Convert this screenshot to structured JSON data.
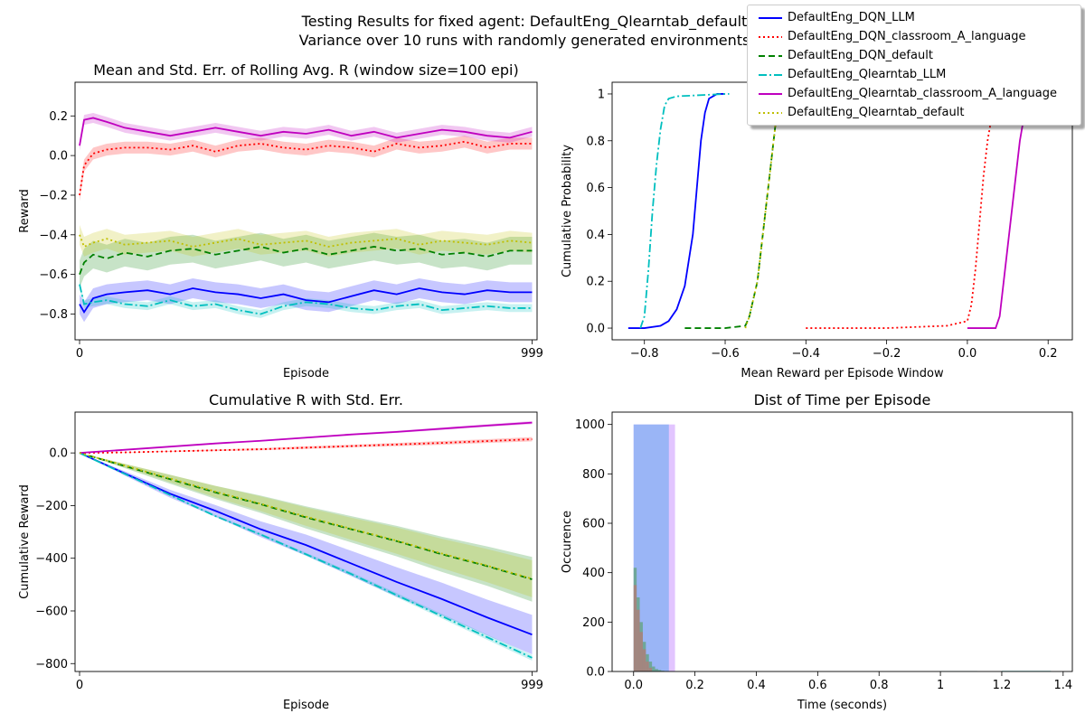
{
  "figure": {
    "title_line1": "Testing Results for fixed agent: DefaultEng_Qlearntab_default",
    "title_line2": "Variance over 10 runs with randomly generated environments"
  },
  "legend": [
    {
      "name": "DefaultEng_DQN_LLM",
      "color": "#0000ff",
      "style": "solid"
    },
    {
      "name": "DefaultEng_DQN_classroom_A_language",
      "color": "#ff0000",
      "style": "dotted"
    },
    {
      "name": "DefaultEng_DQN_default",
      "color": "#008000",
      "style": "dashed"
    },
    {
      "name": "DefaultEng_Qlearntab_LLM",
      "color": "#00bfbf",
      "style": "dashdot"
    },
    {
      "name": "DefaultEng_Qlearntab_classroom_A_language",
      "color": "#bf00bf",
      "style": "solid"
    },
    {
      "name": "DefaultEng_Qlearntab_default",
      "color": "#bfbf00",
      "style": "dotted"
    }
  ],
  "chart_data": [
    {
      "type": "line",
      "title": "Mean and Std. Err. of Rolling Avg. R (window size=100 epi)",
      "xlabel": "Episode",
      "ylabel": "Reward",
      "xlim": [
        -10,
        1010
      ],
      "ylim": [
        -0.93,
        0.37
      ],
      "xticks": [
        0,
        999
      ],
      "yticks": [
        -0.8,
        -0.6,
        -0.4,
        -0.2,
        0.0,
        0.2
      ],
      "x": [
        0,
        10,
        30,
        60,
        100,
        150,
        200,
        250,
        300,
        350,
        400,
        450,
        500,
        550,
        600,
        650,
        700,
        750,
        800,
        850,
        900,
        950,
        999
      ],
      "series": [
        {
          "name": "DefaultEng_DQN_LLM",
          "values": [
            -0.75,
            -0.79,
            -0.72,
            -0.7,
            -0.69,
            -0.68,
            -0.7,
            -0.67,
            -0.69,
            -0.7,
            -0.72,
            -0.7,
            -0.73,
            -0.74,
            -0.71,
            -0.68,
            -0.7,
            -0.67,
            -0.69,
            -0.7,
            -0.68,
            -0.69,
            -0.69
          ],
          "stderr": 0.05
        },
        {
          "name": "DefaultEng_DQN_classroom_A_language",
          "values": [
            -0.2,
            -0.05,
            0.01,
            0.03,
            0.04,
            0.04,
            0.03,
            0.05,
            0.02,
            0.05,
            0.06,
            0.04,
            0.03,
            0.05,
            0.04,
            0.02,
            0.06,
            0.04,
            0.05,
            0.07,
            0.04,
            0.06,
            0.06
          ],
          "stderr": 0.03
        },
        {
          "name": "DefaultEng_DQN_default",
          "values": [
            -0.6,
            -0.54,
            -0.5,
            -0.52,
            -0.49,
            -0.51,
            -0.48,
            -0.47,
            -0.5,
            -0.48,
            -0.46,
            -0.49,
            -0.47,
            -0.5,
            -0.48,
            -0.46,
            -0.48,
            -0.47,
            -0.5,
            -0.49,
            -0.51,
            -0.48,
            -0.48
          ],
          "stderr": 0.07
        },
        {
          "name": "DefaultEng_Qlearntab_LLM",
          "values": [
            -0.65,
            -0.75,
            -0.74,
            -0.73,
            -0.75,
            -0.76,
            -0.73,
            -0.76,
            -0.75,
            -0.78,
            -0.8,
            -0.76,
            -0.74,
            -0.75,
            -0.77,
            -0.78,
            -0.76,
            -0.75,
            -0.78,
            -0.77,
            -0.76,
            -0.77,
            -0.77
          ],
          "stderr": 0.02
        },
        {
          "name": "DefaultEng_Qlearntab_classroom_A_language",
          "values": [
            0.05,
            0.18,
            0.19,
            0.17,
            0.14,
            0.12,
            0.1,
            0.12,
            0.14,
            0.12,
            0.1,
            0.12,
            0.11,
            0.13,
            0.1,
            0.12,
            0.09,
            0.11,
            0.13,
            0.12,
            0.1,
            0.09,
            0.12
          ],
          "stderr": 0.025
        },
        {
          "name": "DefaultEng_Qlearntab_default",
          "values": [
            -0.4,
            -0.46,
            -0.44,
            -0.42,
            -0.45,
            -0.44,
            -0.43,
            -0.46,
            -0.44,
            -0.42,
            -0.45,
            -0.44,
            -0.43,
            -0.46,
            -0.44,
            -0.43,
            -0.42,
            -0.45,
            -0.43,
            -0.44,
            -0.45,
            -0.43,
            -0.44
          ],
          "stderr": 0.05
        }
      ]
    },
    {
      "type": "line",
      "subtype": "ecdf",
      "title": "",
      "xlabel": "Mean Reward per Episode Window",
      "ylabel": "Cumulative Probability",
      "xlim": [
        -0.88,
        0.26
      ],
      "ylim": [
        -0.05,
        1.05
      ],
      "xticks": [
        -0.8,
        -0.6,
        -0.4,
        -0.2,
        0.0,
        0.2
      ],
      "yticks": [
        0.0,
        0.2,
        0.4,
        0.6,
        0.8,
        1.0
      ],
      "series": [
        {
          "name": "DefaultEng_DQN_LLM",
          "x": [
            -0.84,
            -0.8,
            -0.76,
            -0.74,
            -0.72,
            -0.7,
            -0.68,
            -0.67,
            -0.66,
            -0.65,
            -0.64,
            -0.62,
            -0.6
          ],
          "y": [
            0.0,
            0.0,
            0.01,
            0.03,
            0.08,
            0.18,
            0.4,
            0.6,
            0.8,
            0.92,
            0.98,
            1.0,
            1.0
          ]
        },
        {
          "name": "DefaultEng_DQN_classroom_A_language",
          "x": [
            -0.4,
            -0.2,
            -0.05,
            0.0,
            0.01,
            0.02,
            0.03,
            0.04,
            0.05,
            0.06,
            0.07
          ],
          "y": [
            0.0,
            0.0,
            0.01,
            0.03,
            0.1,
            0.25,
            0.45,
            0.65,
            0.8,
            0.9,
            0.97
          ]
        },
        {
          "name": "DefaultEng_DQN_default",
          "x": [
            -0.7,
            -0.6,
            -0.55,
            -0.54,
            -0.52,
            -0.51,
            -0.5,
            -0.49,
            -0.48,
            -0.47,
            -0.46
          ],
          "y": [
            0.0,
            0.0,
            0.01,
            0.05,
            0.2,
            0.35,
            0.5,
            0.65,
            0.8,
            0.95,
            1.0
          ]
        },
        {
          "name": "DefaultEng_Qlearntab_LLM",
          "x": [
            -0.81,
            -0.8,
            -0.79,
            -0.78,
            -0.77,
            -0.76,
            -0.75,
            -0.74,
            -0.72,
            -0.6,
            -0.59
          ],
          "y": [
            0.0,
            0.05,
            0.25,
            0.5,
            0.7,
            0.85,
            0.95,
            0.98,
            0.99,
            1.0,
            1.0
          ]
        },
        {
          "name": "DefaultEng_Qlearntab_classroom_A_language",
          "x": [
            0.0,
            0.07,
            0.08,
            0.09,
            0.1,
            0.11,
            0.12,
            0.13,
            0.14
          ],
          "y": [
            0.0,
            0.0,
            0.05,
            0.2,
            0.35,
            0.5,
            0.65,
            0.8,
            0.9
          ]
        },
        {
          "name": "DefaultEng_Qlearntab_default",
          "x": [
            -0.55,
            -0.54,
            -0.52,
            -0.51,
            -0.5,
            -0.49,
            -0.48,
            -0.47,
            -0.46
          ],
          "y": [
            0.0,
            0.05,
            0.2,
            0.35,
            0.5,
            0.65,
            0.8,
            0.95,
            1.0
          ]
        }
      ]
    },
    {
      "type": "line",
      "title": "Cumulative R with Std. Err.",
      "xlabel": "Episode",
      "ylabel": "Cumulative Reward",
      "xlim": [
        -10,
        1010
      ],
      "ylim": [
        -830,
        155
      ],
      "xticks": [
        0,
        999
      ],
      "yticks": [
        -800,
        -600,
        -400,
        -200,
        0
      ],
      "x": [
        0,
        100,
        200,
        300,
        400,
        500,
        600,
        700,
        800,
        900,
        999
      ],
      "series": [
        {
          "name": "DefaultEng_DQN_LLM",
          "values": [
            0,
            -78,
            -155,
            -220,
            -290,
            -350,
            -420,
            -490,
            -555,
            -625,
            -690
          ],
          "stderr": [
            0,
            8,
            15,
            22,
            30,
            40,
            48,
            56,
            62,
            68,
            75
          ]
        },
        {
          "name": "DefaultEng_DQN_classroom_A_language",
          "values": [
            0,
            2,
            6,
            10,
            14,
            20,
            26,
            32,
            38,
            45,
            52
          ],
          "stderr": [
            0,
            1,
            2,
            3,
            4,
            5,
            5,
            6,
            7,
            7,
            8
          ]
        },
        {
          "name": "DefaultEng_DQN_default",
          "values": [
            0,
            -50,
            -100,
            -150,
            -195,
            -245,
            -290,
            -335,
            -385,
            -430,
            -480
          ],
          "stderr": [
            0,
            8,
            17,
            25,
            33,
            42,
            50,
            58,
            67,
            75,
            85
          ]
        },
        {
          "name": "DefaultEng_Qlearntab_LLM",
          "values": [
            0,
            -80,
            -160,
            -240,
            -310,
            -385,
            -460,
            -540,
            -620,
            -700,
            -778
          ],
          "stderr": [
            0,
            2,
            3,
            4,
            5,
            6,
            7,
            8,
            9,
            10,
            11
          ]
        },
        {
          "name": "DefaultEng_Qlearntab_classroom_A_language",
          "values": [
            0,
            12,
            24,
            36,
            46,
            58,
            70,
            80,
            92,
            104,
            115
          ],
          "stderr": [
            0,
            1,
            2,
            2,
            3,
            3,
            4,
            4,
            5,
            5,
            6
          ]
        },
        {
          "name": "DefaultEng_Qlearntab_default",
          "values": [
            0,
            -48,
            -97,
            -147,
            -193,
            -242,
            -288,
            -333,
            -382,
            -428,
            -478
          ],
          "stderr": [
            0,
            7,
            14,
            22,
            28,
            35,
            42,
            50,
            56,
            63,
            70
          ]
        }
      ]
    },
    {
      "type": "bar",
      "subtype": "histogram",
      "title": "Dist of Time per Episode",
      "xlabel": "Time (seconds)",
      "ylabel": "Occurence",
      "xlim": [
        -0.07,
        1.43
      ],
      "ylim": [
        0,
        1050
      ],
      "xticks": [
        0.0,
        0.2,
        0.4,
        0.6,
        0.8,
        1.0,
        1.2,
        1.4
      ],
      "yticks": [
        0,
        200,
        400,
        600,
        800,
        1000
      ],
      "series": [
        {
          "name": "violet",
          "color": "#bf7fff",
          "opacity": 0.45,
          "bins": [
            [
              0.0,
              0.135,
              1000
            ]
          ]
        },
        {
          "name": "blue",
          "color": "#6aaaf0",
          "opacity": 0.6,
          "bins": [
            [
              0.0,
              0.115,
              1000
            ]
          ]
        },
        {
          "name": "green",
          "color": "#4d9a4d",
          "opacity": 0.55,
          "bins": [
            [
              0.0,
              0.01,
              420
            ],
            [
              0.01,
              0.02,
              300
            ],
            [
              0.02,
              0.03,
              200
            ],
            [
              0.03,
              0.04,
              120
            ],
            [
              0.04,
              0.05,
              70
            ],
            [
              0.05,
              0.06,
              40
            ],
            [
              0.06,
              0.07,
              20
            ],
            [
              0.07,
              0.08,
              10
            ],
            [
              0.08,
              0.09,
              6
            ],
            [
              0.09,
              0.1,
              3
            ]
          ]
        },
        {
          "name": "red",
          "color": "#e06060",
          "opacity": 0.45,
          "bins": [
            [
              0.0,
              0.01,
              350
            ],
            [
              0.01,
              0.02,
              250
            ],
            [
              0.02,
              0.03,
              160
            ],
            [
              0.03,
              0.04,
              90
            ],
            [
              0.04,
              0.05,
              40
            ],
            [
              0.05,
              0.06,
              15
            ]
          ]
        },
        {
          "name": "cyan",
          "color": "#40c0c0",
          "opacity": 0.5,
          "bins": [
            [
              1.0,
              1.12,
              2
            ],
            [
              1.2,
              1.36,
              3
            ]
          ]
        }
      ]
    }
  ]
}
